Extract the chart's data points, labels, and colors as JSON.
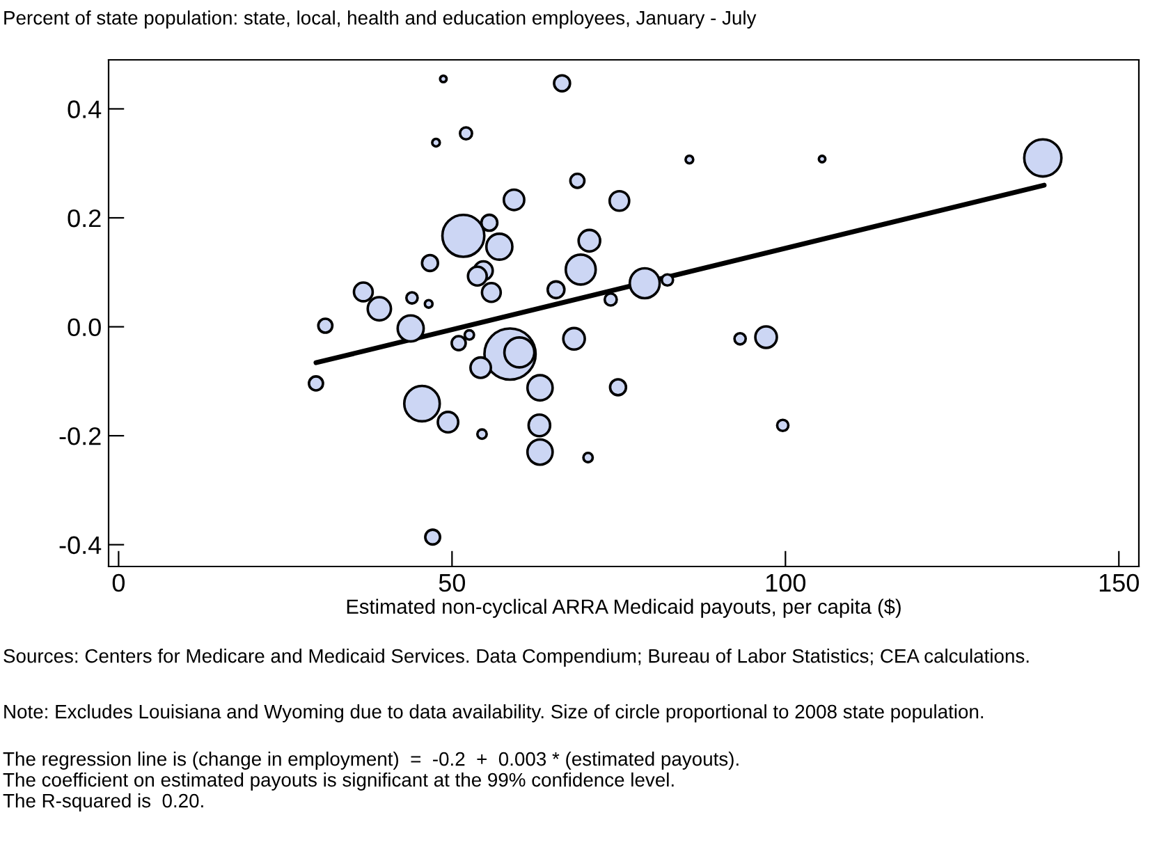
{
  "chart_data": {
    "type": "bubble",
    "title": "Percent of state population: state, local, health and education employees, January - July",
    "xlabel": "Estimated non-cyclical ARRA Medicaid payouts, per capita ($)",
    "xlim": [
      -1.5,
      153
    ],
    "xticks": [
      0,
      50,
      100,
      150
    ],
    "ylim": [
      -0.44,
      0.49
    ],
    "yticks": [
      {
        "value": -0.4,
        "label": "-0.4"
      },
      {
        "value": -0.2,
        "label": "-0.2"
      },
      {
        "value": 0,
        "label": "0.0"
      },
      {
        "value": 0.2,
        "label": "0.2"
      },
      {
        "value": 0.4,
        "label": "0.4"
      }
    ],
    "grid": false,
    "legend": false,
    "series": [
      {
        "color": "#ccd6f4",
        "x": [
          48.7,
          52.1,
          47.6,
          51.7,
          55.6,
          46.7,
          36.7,
          39.1,
          44.0,
          46.5,
          31.0,
          43.8,
          29.6,
          45.5,
          49.4,
          54.5,
          47.1,
          66.5,
          59.3,
          57.1,
          54.7,
          53.8,
          55.9,
          51.0,
          52.6,
          58.7,
          60.1,
          54.3,
          63.2,
          63.1,
          63.2,
          70.4,
          74.9,
          68.3,
          65.6,
          69.3,
          70.6,
          68.8,
          75.1,
          85.6,
          73.8,
          78.9,
          82.3,
          93.2,
          97.1,
          99.6,
          105.5,
          138.6
        ],
        "values": [
          0.455,
          0.355,
          0.338,
          0.167,
          0.191,
          0.117,
          0.064,
          0.033,
          0.053,
          0.042,
          0.002,
          -0.003,
          -0.104,
          -0.141,
          -0.175,
          -0.197,
          -0.386,
          0.447,
          0.233,
          0.147,
          0.103,
          0.093,
          0.063,
          -0.03,
          -0.015,
          -0.05,
          -0.047,
          -0.075,
          -0.112,
          -0.181,
          -0.23,
          -0.24,
          -0.111,
          -0.022,
          0.068,
          0.105,
          0.158,
          0.268,
          0.231,
          0.307,
          0.05,
          0.08,
          0.086,
          -0.022,
          -0.019,
          -0.181,
          0.308,
          0.31
        ],
        "sizes": [
          0.016,
          0.055,
          0.022,
          0.672,
          0.097,
          0.097,
          0.134,
          0.206,
          0.048,
          0.022,
          0.075,
          0.258,
          0.075,
          0.481,
          0.159,
          0.033,
          0.084,
          0.097,
          0.159,
          0.258,
          0.134,
          0.134,
          0.134,
          0.075,
          0.033,
          1,
          0.342,
          0.159,
          0.242,
          0.177,
          0.242,
          0.033,
          0.097,
          0.177,
          0.107,
          0.342,
          0.177,
          0.075,
          0.146,
          0.022,
          0.055,
          0.342,
          0.048,
          0.048,
          0.177,
          0.048,
          0.016,
          0.528
        ]
      },
      {
        "type": "line",
        "color": "#000000",
        "x": [
          29.6,
          138.8
        ],
        "values": [
          -0.066,
          0.26
        ]
      }
    ],
    "annotations": [
      "Sources: Centers for Medicare and Medicaid Services. Data Compendium; Bureau of Labor Statistics; CEA calculations.",
      "Note: Excludes Louisiana and Wyoming due to data availability. Size of circle proportional to 2008 state population.",
      "The regression line is (change in employment)  =  -0.2  +  0.003 * (estimated payouts).",
      "The coefficient on estimated payouts is significant at the 99% confidence level.",
      "The R-squared is  0.20."
    ]
  }
}
